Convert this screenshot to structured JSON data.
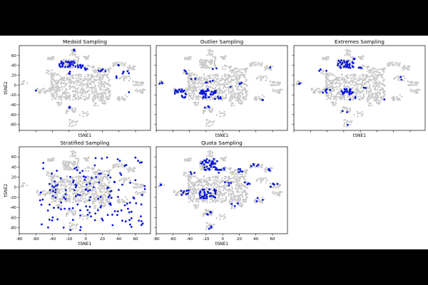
{
  "colors": {
    "background_points": "#c8c8c8",
    "sampled_points": "#0a16d8"
  },
  "chart_data": [
    {
      "type": "scatter",
      "title": "Medoid Sampling",
      "xlabel": "tSNE1",
      "ylabel": "tSNE2",
      "xlim": [
        -80,
        78
      ],
      "ylim": [
        -92,
        80
      ],
      "xticks": [
        -80,
        -60,
        -40,
        -20,
        0,
        20,
        40,
        60
      ],
      "yticks": [
        -80,
        -60,
        -40,
        -20,
        0,
        20,
        40,
        60
      ],
      "show_xticklabels": false,
      "show_yticklabels": true,
      "sample_clusters": [
        {
          "x": [
            -60,
            -60
          ],
          "y": [
            -11,
            -13
          ],
          "n": 2
        },
        {
          "x": [
            -32,
            -12
          ],
          "y": [
            36,
            48
          ],
          "n": 34
        },
        {
          "x": [
            -17,
            -13
          ],
          "y": [
            67,
            72
          ],
          "n": 4
        },
        {
          "x": [
            -10,
            -2
          ],
          "y": [
            34,
            42
          ],
          "n": 10
        },
        {
          "x": [
            -2,
            2
          ],
          "y": [
            30,
            36
          ],
          "n": 3
        },
        {
          "x": [
            -24,
            -18
          ],
          "y": [
            22,
            28
          ],
          "n": 3
        },
        {
          "x": [
            15,
            24
          ],
          "y": [
            28,
            34
          ],
          "n": 5
        },
        {
          "x": [
            44,
            52
          ],
          "y": [
            22,
            30
          ],
          "n": 5
        },
        {
          "x": [
            39,
            43
          ],
          "y": [
            38,
            42
          ],
          "n": 2
        },
        {
          "x": [
            36,
            40
          ],
          "y": [
            14,
            18
          ],
          "n": 2
        },
        {
          "x": [
            -20,
            -16
          ],
          "y": [
            -48,
            -44
          ],
          "n": 2
        },
        {
          "x": [
            50,
            54
          ],
          "y": [
            -16,
            -12
          ],
          "n": 1
        }
      ]
    },
    {
      "type": "scatter",
      "title": "Outlier Sampling",
      "xlabel": "tSNE1",
      "ylabel": "",
      "xlim": [
        -80,
        78
      ],
      "ylim": [
        -92,
        80
      ],
      "xticks": [
        -80,
        -60,
        -40,
        -20,
        0,
        20,
        40,
        60
      ],
      "yticks": [
        -80,
        -60,
        -40,
        -20,
        0,
        20,
        40,
        60
      ],
      "show_xticklabels": false,
      "show_yticklabels": false,
      "sample_clusters": [
        {
          "x": [
            -76,
            -72
          ],
          "y": [
            2,
            6
          ],
          "n": 3
        },
        {
          "x": [
            -58,
            -44
          ],
          "y": [
            -18,
            -8
          ],
          "n": 16
        },
        {
          "x": [
            -50,
            -42
          ],
          "y": [
            -26,
            -18
          ],
          "n": 6
        },
        {
          "x": [
            -28,
            -8
          ],
          "y": [
            -20,
            -8
          ],
          "n": 32
        },
        {
          "x": [
            -24,
            -14
          ],
          "y": [
            -26,
            -20
          ],
          "n": 6
        },
        {
          "x": [
            -14,
            -2
          ],
          "y": [
            -28,
            -20
          ],
          "n": 5
        },
        {
          "x": [
            -22,
            -10
          ],
          "y": [
            4,
            12
          ],
          "n": 4
        },
        {
          "x": [
            -46,
            -40
          ],
          "y": [
            20,
            30
          ],
          "n": 3
        },
        {
          "x": [
            -40,
            -30
          ],
          "y": [
            12,
            16
          ],
          "n": 3
        },
        {
          "x": [
            -12,
            -6
          ],
          "y": [
            30,
            36
          ],
          "n": 2
        },
        {
          "x": [
            6,
            10
          ],
          "y": [
            -6,
            -2
          ],
          "n": 1
        },
        {
          "x": [
            20,
            26
          ],
          "y": [
            2,
            8
          ],
          "n": 3
        },
        {
          "x": [
            46,
            50
          ],
          "y": [
            -32,
            -28
          ],
          "n": 2
        },
        {
          "x": [
            -22,
            -16
          ],
          "y": [
            -48,
            -42
          ],
          "n": 3
        },
        {
          "x": [
            54,
            58
          ],
          "y": [
            34,
            38
          ],
          "n": 1
        }
      ]
    },
    {
      "type": "scatter",
      "title": "Extremes Sampling",
      "xlabel": "tSNE1",
      "ylabel": "",
      "xlim": [
        -80,
        78
      ],
      "ylim": [
        -92,
        80
      ],
      "xticks": [
        -80,
        -60,
        -40,
        -20,
        0,
        20,
        40,
        60
      ],
      "yticks": [
        -80,
        -60,
        -40,
        -20,
        0,
        20,
        40,
        60
      ],
      "show_xticklabels": false,
      "show_yticklabels": false,
      "sample_clusters": [
        {
          "x": [
            -76,
            -72
          ],
          "y": [
            2,
            6
          ],
          "n": 2
        },
        {
          "x": [
            -28,
            -8
          ],
          "y": [
            34,
            50
          ],
          "n": 30
        },
        {
          "x": [
            -12,
            -6
          ],
          "y": [
            52,
            58
          ],
          "n": 3
        },
        {
          "x": [
            -24,
            -8
          ],
          "y": [
            -20,
            -8
          ],
          "n": 24
        },
        {
          "x": [
            -46,
            -36
          ],
          "y": [
            -16,
            -8
          ],
          "n": 6
        },
        {
          "x": [
            -50,
            -40
          ],
          "y": [
            28,
            32
          ],
          "n": 3
        },
        {
          "x": [
            -6,
            2
          ],
          "y": [
            30,
            36
          ],
          "n": 3
        },
        {
          "x": [
            4,
            10
          ],
          "y": [
            -6,
            -2
          ],
          "n": 2
        },
        {
          "x": [
            -14,
            -6
          ],
          "y": [
            -30,
            -24
          ],
          "n": 3
        },
        {
          "x": [
            -22,
            -16
          ],
          "y": [
            -56,
            -50
          ],
          "n": 2
        },
        {
          "x": [
            -18,
            -14
          ],
          "y": [
            -82,
            -78
          ],
          "n": 1
        },
        {
          "x": [
            44,
            50
          ],
          "y": [
            10,
            18
          ],
          "n": 2
        },
        {
          "x": [
            26,
            32
          ],
          "y": [
            -32,
            -28
          ],
          "n": 1
        }
      ]
    },
    {
      "type": "scatter",
      "title": "Stratified Sampling",
      "xlabel": "tSNE1",
      "ylabel": "tSNE2",
      "xlim": [
        -80,
        78
      ],
      "ylim": [
        -92,
        80
      ],
      "xticks": [
        -80,
        -60,
        -40,
        -20,
        0,
        20,
        40,
        60
      ],
      "yticks": [
        -80,
        -60,
        -40,
        -20,
        0,
        20,
        40,
        60
      ],
      "show_xticklabels": true,
      "show_yticklabels": true,
      "sample_clusters": [
        {
          "x": [
            -55,
            72
          ],
          "y": [
            -85,
            60
          ],
          "n": 160
        }
      ]
    },
    {
      "type": "scatter",
      "title": "Quota Sampling",
      "xlabel": "tSNE1",
      "ylabel": "",
      "xlim": [
        -80,
        78
      ],
      "ylim": [
        -92,
        80
      ],
      "xticks": [
        -80,
        -60,
        -40,
        -20,
        0,
        20,
        40,
        60
      ],
      "yticks": [
        -80,
        -60,
        -40,
        -20,
        0,
        20,
        40,
        60
      ],
      "show_xticklabels": true,
      "show_yticklabels": false,
      "sample_clusters": [
        {
          "x": [
            -26,
            -6
          ],
          "y": [
            34,
            56
          ],
          "n": 40
        },
        {
          "x": [
            -28,
            -8
          ],
          "y": [
            -22,
            -4
          ],
          "n": 36
        },
        {
          "x": [
            -50,
            -40
          ],
          "y": [
            -16,
            -6
          ],
          "n": 8
        },
        {
          "x": [
            -76,
            -72
          ],
          "y": [
            2,
            6
          ],
          "n": 2
        },
        {
          "x": [
            -6,
            4
          ],
          "y": [
            28,
            38
          ],
          "n": 6
        },
        {
          "x": [
            18,
            26
          ],
          "y": [
            28,
            36
          ],
          "n": 5
        },
        {
          "x": [
            34,
            44
          ],
          "y": [
            40,
            46
          ],
          "n": 5
        },
        {
          "x": [
            50,
            58
          ],
          "y": [
            30,
            38
          ],
          "n": 3
        },
        {
          "x": [
            56,
            66
          ],
          "y": [
            0,
            8
          ],
          "n": 5
        },
        {
          "x": [
            -20,
            -14
          ],
          "y": [
            -56,
            -48
          ],
          "n": 4
        },
        {
          "x": [
            -18,
            -12
          ],
          "y": [
            -82,
            -74
          ],
          "n": 3
        },
        {
          "x": [
            10,
            20
          ],
          "y": [
            -40,
            -30
          ],
          "n": 3
        },
        {
          "x": [
            40,
            50
          ],
          "y": [
            -30,
            -20
          ],
          "n": 3
        },
        {
          "x": [
            0,
            10
          ],
          "y": [
            2,
            12
          ],
          "n": 4
        },
        {
          "x": [
            26,
            36
          ],
          "y": [
            2,
            12
          ],
          "n": 4
        },
        {
          "x": [
            -40,
            -32
          ],
          "y": [
            26,
            34
          ],
          "n": 3
        }
      ]
    }
  ],
  "background_clusters": [
    {
      "x": [
        -42,
        30
      ],
      "y": [
        -30,
        22
      ],
      "n": 520
    },
    {
      "x": [
        -28,
        -8
      ],
      "y": [
        34,
        52
      ],
      "n": 70
    },
    {
      "x": [
        -20,
        -12
      ],
      "y": [
        60,
        72
      ],
      "n": 14
    },
    {
      "x": [
        -46,
        -38
      ],
      "y": [
        50,
        58
      ],
      "n": 16
    },
    {
      "x": [
        -12,
        4
      ],
      "y": [
        52,
        60
      ],
      "n": 16
    },
    {
      "x": [
        -60,
        -42
      ],
      "y": [
        -18,
        -6
      ],
      "n": 36
    },
    {
      "x": [
        -78,
        -70
      ],
      "y": [
        0,
        8
      ],
      "n": 8
    },
    {
      "x": [
        10,
        30
      ],
      "y": [
        24,
        36
      ],
      "n": 30
    },
    {
      "x": [
        32,
        48
      ],
      "y": [
        38,
        46
      ],
      "n": 26
    },
    {
      "x": [
        50,
        60
      ],
      "y": [
        30,
        40
      ],
      "n": 16
    },
    {
      "x": [
        56,
        70
      ],
      "y": [
        -2,
        8
      ],
      "n": 24
    },
    {
      "x": [
        40,
        54
      ],
      "y": [
        8,
        18
      ],
      "n": 18
    },
    {
      "x": [
        60,
        72
      ],
      "y": [
        -18,
        -8
      ],
      "n": 16
    },
    {
      "x": [
        38,
        50
      ],
      "y": [
        -32,
        -20
      ],
      "n": 20
    },
    {
      "x": [
        8,
        24
      ],
      "y": [
        -42,
        -30
      ],
      "n": 22
    },
    {
      "x": [
        -24,
        -12
      ],
      "y": [
        -58,
        -44
      ],
      "n": 24
    },
    {
      "x": [
        -20,
        -10
      ],
      "y": [
        -84,
        -70
      ],
      "n": 16
    },
    {
      "x": [
        -8,
        4
      ],
      "y": [
        -64,
        -54
      ],
      "n": 10
    },
    {
      "x": [
        -50,
        -34
      ],
      "y": [
        20,
        30
      ],
      "n": 14
    },
    {
      "x": [
        -2,
        10
      ],
      "y": [
        28,
        40
      ],
      "n": 14
    },
    {
      "x": [
        -36,
        -28
      ],
      "y": [
        -42,
        -34
      ],
      "n": 10
    }
  ]
}
